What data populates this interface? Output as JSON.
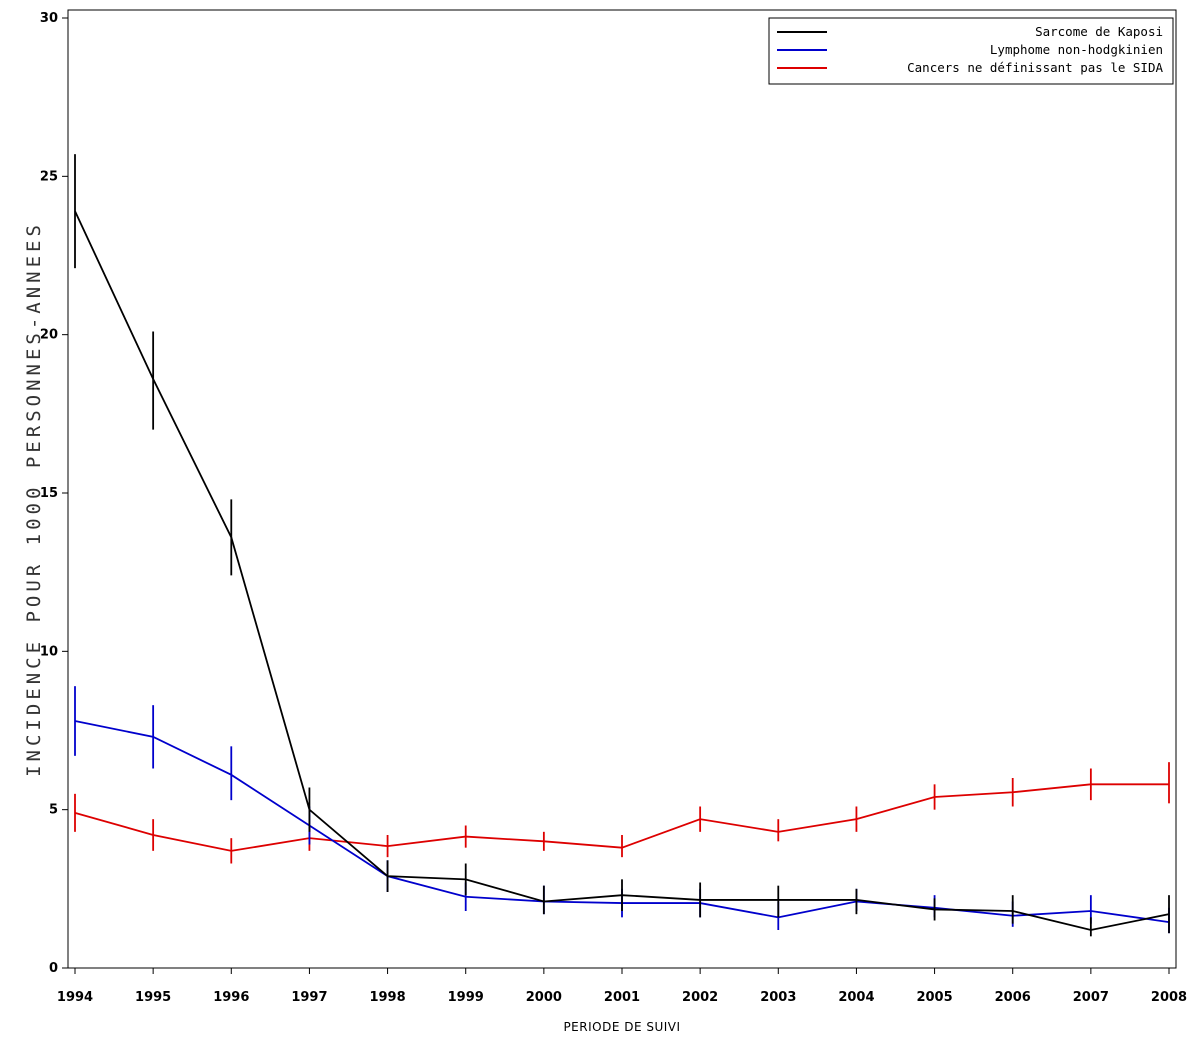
{
  "chart_data": {
    "type": "line",
    "title": "",
    "xlabel": "PERIODE DE SUIVI",
    "ylabel": "INCIDENCE POUR 1000 PERSONNES-ANNEES",
    "x": [
      "1994",
      "1995",
      "1996",
      "1997",
      "1998",
      "1999",
      "2000",
      "2001",
      "2002",
      "2003",
      "2004",
      "2005",
      "2006",
      "2007",
      "2008"
    ],
    "ylim": [
      0,
      30
    ],
    "yticks": [
      "0",
      "5",
      "10",
      "15",
      "20",
      "25",
      "30"
    ],
    "grid": false,
    "legend_position": "top-right",
    "series": [
      {
        "name": "Sarcome de Kaposi",
        "color": "#000000",
        "values": [
          23.9,
          18.6,
          13.6,
          5.0,
          2.9,
          2.8,
          2.1,
          2.3,
          2.15,
          2.15,
          2.15,
          1.85,
          1.8,
          1.2,
          1.7
        ],
        "lower": [
          22.1,
          17.0,
          12.4,
          4.3,
          2.4,
          2.3,
          1.7,
          1.8,
          1.6,
          1.6,
          1.7,
          1.5,
          1.4,
          1.0,
          1.1
        ],
        "upper": [
          25.7,
          20.1,
          14.8,
          5.7,
          3.4,
          3.3,
          2.6,
          2.8,
          2.7,
          2.6,
          2.5,
          2.2,
          2.3,
          1.6,
          2.3
        ]
      },
      {
        "name": "Lymphome non-hodgkinien",
        "color": "#0000cc",
        "values": [
          7.8,
          7.3,
          6.1,
          4.5,
          2.9,
          2.25,
          2.1,
          2.05,
          2.05,
          1.6,
          2.1,
          1.9,
          1.65,
          1.8,
          1.45
        ],
        "lower": [
          6.7,
          6.3,
          5.3,
          3.9,
          2.4,
          1.8,
          1.7,
          1.6,
          1.6,
          1.2,
          1.8,
          1.6,
          1.3,
          1.4,
          1.1
        ],
        "upper": [
          8.9,
          8.3,
          7.0,
          5.1,
          3.4,
          2.7,
          2.6,
          2.5,
          2.5,
          2.1,
          2.5,
          2.3,
          2.1,
          2.3,
          1.9
        ]
      },
      {
        "name": "Cancers ne définissant pas le SIDA",
        "color": "#dd0000",
        "values": [
          4.9,
          4.2,
          3.7,
          4.1,
          3.85,
          4.15,
          4.0,
          3.8,
          4.7,
          4.3,
          4.7,
          5.4,
          5.55,
          5.8,
          5.8
        ],
        "lower": [
          4.3,
          3.7,
          3.3,
          3.7,
          3.5,
          3.8,
          3.7,
          3.5,
          4.3,
          4.0,
          4.3,
          5.0,
          5.1,
          5.3,
          5.2
        ],
        "upper": [
          5.5,
          4.7,
          4.1,
          4.5,
          4.2,
          4.5,
          4.3,
          4.2,
          5.1,
          4.7,
          5.1,
          5.8,
          6.0,
          6.3,
          6.5
        ]
      }
    ]
  }
}
